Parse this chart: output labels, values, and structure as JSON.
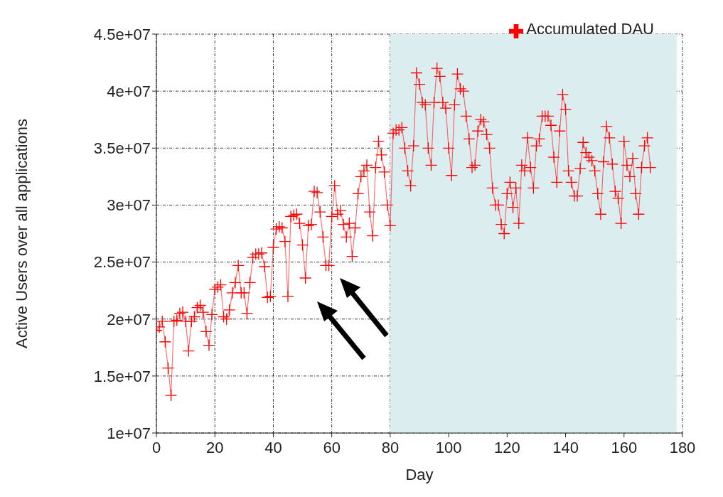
{
  "chart_data": {
    "type": "line",
    "xlabel": "Day",
    "ylabel": "Active Users over all applications",
    "x": [
      0,
      1,
      2,
      3,
      4,
      5,
      6,
      7,
      8,
      9,
      10,
      11,
      12,
      13,
      14,
      15,
      16,
      17,
      18,
      19,
      20,
      21,
      22,
      23,
      24,
      25,
      26,
      27,
      28,
      29,
      30,
      31,
      32,
      33,
      34,
      35,
      36,
      37,
      38,
      39,
      40,
      41,
      42,
      43,
      44,
      45,
      46,
      47,
      48,
      49,
      50,
      51,
      52,
      53,
      54,
      55,
      56,
      57,
      58,
      59,
      60,
      61,
      62,
      63,
      64,
      65,
      66,
      67,
      68,
      69,
      70,
      71,
      72,
      73,
      74,
      75,
      76,
      77,
      78,
      79,
      80,
      81,
      82,
      83,
      84,
      85,
      86,
      87,
      88,
      89,
      90,
      91,
      92,
      93,
      94,
      95,
      96,
      97,
      98,
      99,
      100,
      101,
      102,
      103,
      104,
      105,
      106,
      107,
      108,
      109,
      110,
      111,
      112,
      113,
      114,
      115,
      116,
      117,
      118,
      119,
      120,
      121,
      122,
      123,
      124,
      125,
      126,
      127,
      128,
      129,
      130,
      131,
      132,
      133,
      134,
      135,
      136,
      137,
      138,
      139,
      140,
      141,
      142,
      143,
      144,
      145,
      146,
      147,
      148,
      149,
      150,
      151,
      152,
      153,
      154,
      155,
      156,
      157,
      158,
      159,
      160,
      161,
      162,
      163,
      164,
      165,
      166,
      167,
      168,
      169
    ],
    "series": [
      {
        "name": "Accumulated DAU",
        "color": "#ff0000",
        "values": [
          19000000,
          19300000,
          19800000,
          18000000,
          15700000,
          13300000,
          19800000,
          19900000,
          20500000,
          20600000,
          19800000,
          17200000,
          19800000,
          20200000,
          21000000,
          21200000,
          20600000,
          18900000,
          17700000,
          20400000,
          22600000,
          22800000,
          23000000,
          20200000,
          20000000,
          20800000,
          22300000,
          23200000,
          24700000,
          22300000,
          22300000,
          20500000,
          23200000,
          25400000,
          25700000,
          25700000,
          25800000,
          24600000,
          21900000,
          22000000,
          26300000,
          27900000,
          28100000,
          28000000,
          26800000,
          22000000,
          29000000,
          29100000,
          29200000,
          28400000,
          26500000,
          23600000,
          28200000,
          28300000,
          31200000,
          31100000,
          29400000,
          27200000,
          24700000,
          24700000,
          29000000,
          31700000,
          29200000,
          29500000,
          28300000,
          27200000,
          28400000,
          25500000,
          28000000,
          31000000,
          32500000,
          33000000,
          33500000,
          29400000,
          27300000,
          33300000,
          35600000,
          34400000,
          32900000,
          30000000,
          28200000,
          36300000,
          36600000,
          36600000,
          36800000,
          35000000,
          33000000,
          31700000,
          35200000,
          41600000,
          40600000,
          39000000,
          38800000,
          35000000,
          33500000,
          39000000,
          42000000,
          41300000,
          39000000,
          38500000,
          35000000,
          32600000,
          38800000,
          41500000,
          40200000,
          40000000,
          37800000,
          35800000,
          33300000,
          33500000,
          36500000,
          37500000,
          37300000,
          36200000,
          35000000,
          31500000,
          30000000,
          30000000,
          28300000,
          27500000,
          31000000,
          32000000,
          29800000,
          31500000,
          28400000,
          33500000,
          33000000,
          35900000,
          33300000,
          31500000,
          35200000,
          35800000,
          37800000,
          37800000,
          37800000,
          37000000,
          34200000,
          32000000,
          36500000,
          39700000,
          38400000,
          33000000,
          32000000,
          30800000,
          30800000,
          33200000,
          35500000,
          34600000,
          34200000,
          33900000,
          33000000,
          31000000,
          29200000,
          33800000,
          36900000,
          35900000,
          33600000,
          31200000,
          30600000,
          28400000,
          35600000,
          33500000,
          32500000,
          34100000,
          31000000,
          29200000,
          33300000,
          35200000,
          35900000,
          33300000
        ]
      }
    ],
    "xlim": [
      0,
      180
    ],
    "xticks": [
      0,
      20,
      40,
      60,
      80,
      100,
      120,
      140,
      160,
      180
    ],
    "ylim": [
      10000000,
      45000000
    ],
    "yticks": [
      {
        "value": 10000000,
        "label": "1e+07"
      },
      {
        "value": 15000000,
        "label": "1.5e+07"
      },
      {
        "value": 20000000,
        "label": "2e+07"
      },
      {
        "value": 25000000,
        "label": "2.5e+07"
      },
      {
        "value": 30000000,
        "label": "3e+07"
      },
      {
        "value": 35000000,
        "label": "3.5e+07"
      },
      {
        "value": 40000000,
        "label": "4e+07"
      },
      {
        "value": 45000000,
        "label": "4.5e+07"
      }
    ],
    "bands": [
      {
        "axis": "x",
        "from": 80,
        "to": 178,
        "color": "#dcedf0"
      }
    ],
    "grid": true,
    "legend": "top right",
    "marker": "cross",
    "line_style": "solid"
  }
}
